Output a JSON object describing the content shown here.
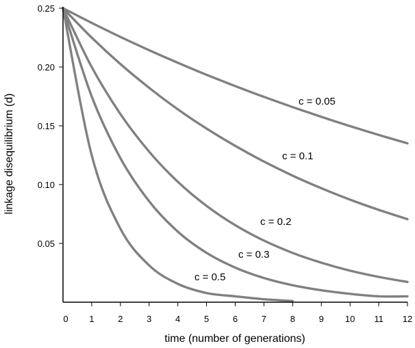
{
  "chart_data": {
    "type": "line",
    "title": "",
    "xlabel": "time  (number  of generations)",
    "ylabel": "linkage disequilibrium  (d)",
    "xlim": [
      0,
      12
    ],
    "ylim": [
      0,
      0.25
    ],
    "xticks": [
      0,
      1,
      2,
      3,
      4,
      5,
      6,
      7,
      8,
      9,
      10,
      11,
      12
    ],
    "yticks": [
      0.05,
      0.1,
      0.15,
      0.2,
      0.25
    ],
    "ytick_labels": [
      "0.05",
      "0.10",
      "0.15",
      "0.20",
      "0.25"
    ],
    "grid": false,
    "legend": "none",
    "line_color": "#808080",
    "series": [
      {
        "name": "c = 0.05",
        "x": [
          0,
          1,
          2,
          3,
          4,
          5,
          6,
          7,
          8,
          9,
          10,
          11,
          12
        ],
        "y": [
          0.25,
          0.2375,
          0.2256,
          0.2143,
          0.2036,
          0.1934,
          0.1838,
          0.1746,
          0.1659,
          0.1576,
          0.1497,
          0.1422,
          0.1351
        ]
      },
      {
        "name": "c = 0.1",
        "x": [
          0,
          1,
          2,
          3,
          4,
          5,
          6,
          7,
          8,
          9,
          10,
          11,
          12
        ],
        "y": [
          0.25,
          0.225,
          0.2025,
          0.1823,
          0.164,
          0.1476,
          0.1329,
          0.1196,
          0.1076,
          0.0969,
          0.0872,
          0.0785,
          0.0706
        ]
      },
      {
        "name": "c = 0.2",
        "x": [
          0,
          1,
          2,
          3,
          4,
          5,
          6,
          7,
          8,
          9,
          10,
          11,
          12
        ],
        "y": [
          0.25,
          0.2,
          0.16,
          0.128,
          0.1024,
          0.0819,
          0.0655,
          0.0524,
          0.0419,
          0.0336,
          0.0268,
          0.0215,
          0.0172
        ]
      },
      {
        "name": "c = 0.3",
        "x": [
          0,
          1,
          2,
          3,
          4,
          5,
          6,
          7,
          8,
          9,
          10,
          11,
          12
        ],
        "y": [
          0.25,
          0.175,
          0.1225,
          0.0858,
          0.06,
          0.042,
          0.0294,
          0.0206,
          0.0144,
          0.0101,
          0.0071,
          0.005,
          0.005
        ]
      },
      {
        "name": "c = 0.5",
        "x": [
          0,
          1,
          2,
          3,
          4,
          5,
          6,
          7,
          8
        ],
        "y": [
          0.25,
          0.125,
          0.0625,
          0.0313,
          0.0156,
          0.0078,
          0.005,
          0.0025,
          0.001
        ]
      }
    ]
  }
}
